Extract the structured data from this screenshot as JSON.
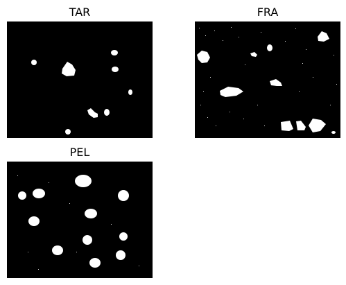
{
  "panels": [
    {
      "title": "TAR"
    },
    {
      "title": "FRA"
    },
    {
      "title": "PEL"
    }
  ],
  "colors": {
    "background": "#000000",
    "blob": "#ffffff",
    "page": "#ffffff"
  }
}
